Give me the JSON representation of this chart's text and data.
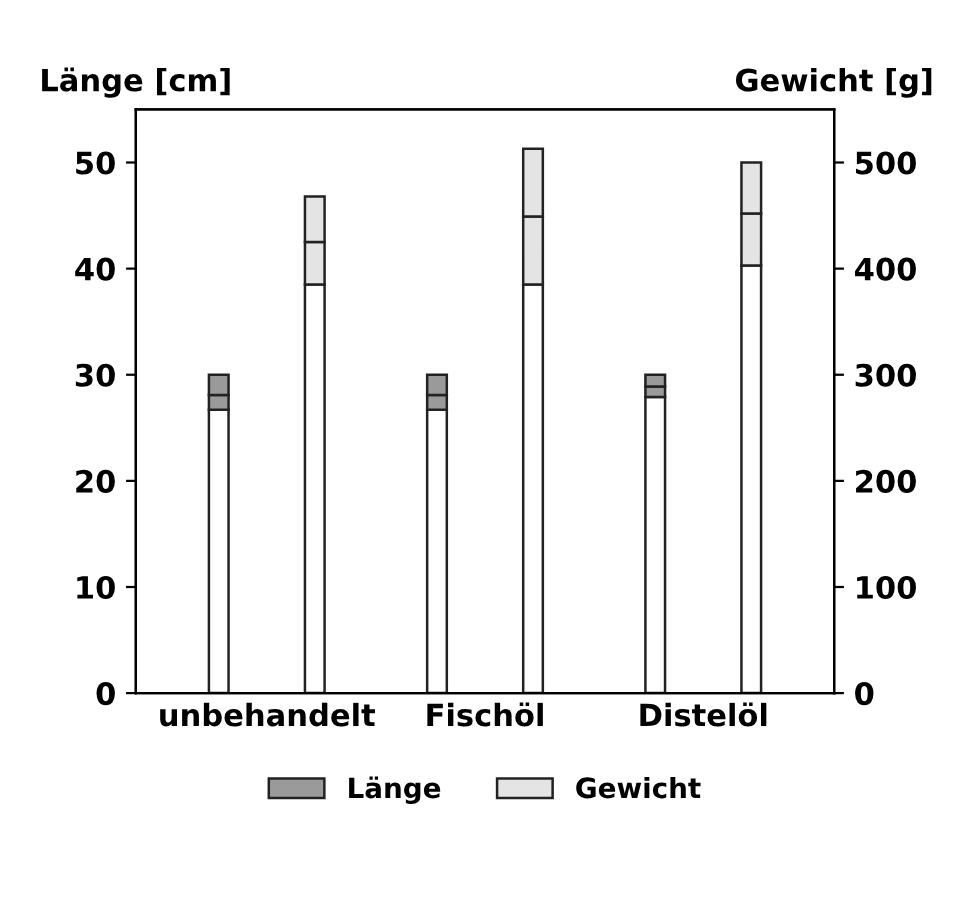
{
  "chart_data": {
    "type": "bar",
    "stacked": true,
    "ylabel": "Länge [cm]",
    "y2label": "Gewicht [g]",
    "categories": [
      "unbehandelt",
      "Fischöl",
      "Distelöl"
    ],
    "series": [
      {
        "color": "#ffffff",
        "values": [
          26.7,
          26.7,
          27.9
        ]
      },
      {
        "name": "Länge",
        "color": "#9a9a9a",
        "values": [
          1.4,
          1.4,
          1.0
        ]
      },
      {
        "color": "#9a9a9a",
        "values": [
          1.9,
          1.9,
          1.1
        ]
      },
      {
        "color": "#ffffff",
        "axis": "y2",
        "values": [
          385,
          385,
          403
        ]
      },
      {
        "name": "Gewicht",
        "color": "#e4e4e4",
        "axis": "y2",
        "values": [
          40,
          64,
          49
        ]
      },
      {
        "color": "#e4e4e4",
        "axis": "y2",
        "values": [
          43,
          64,
          48
        ]
      }
    ],
    "ylim": [
      0,
      55
    ],
    "yticks": [
      0,
      10,
      20,
      30,
      40,
      50
    ],
    "y2lim": [
      0,
      550
    ],
    "y2ticks": [
      0,
      100,
      200,
      300,
      400,
      500
    ],
    "grid": false,
    "legend": "bottom"
  }
}
